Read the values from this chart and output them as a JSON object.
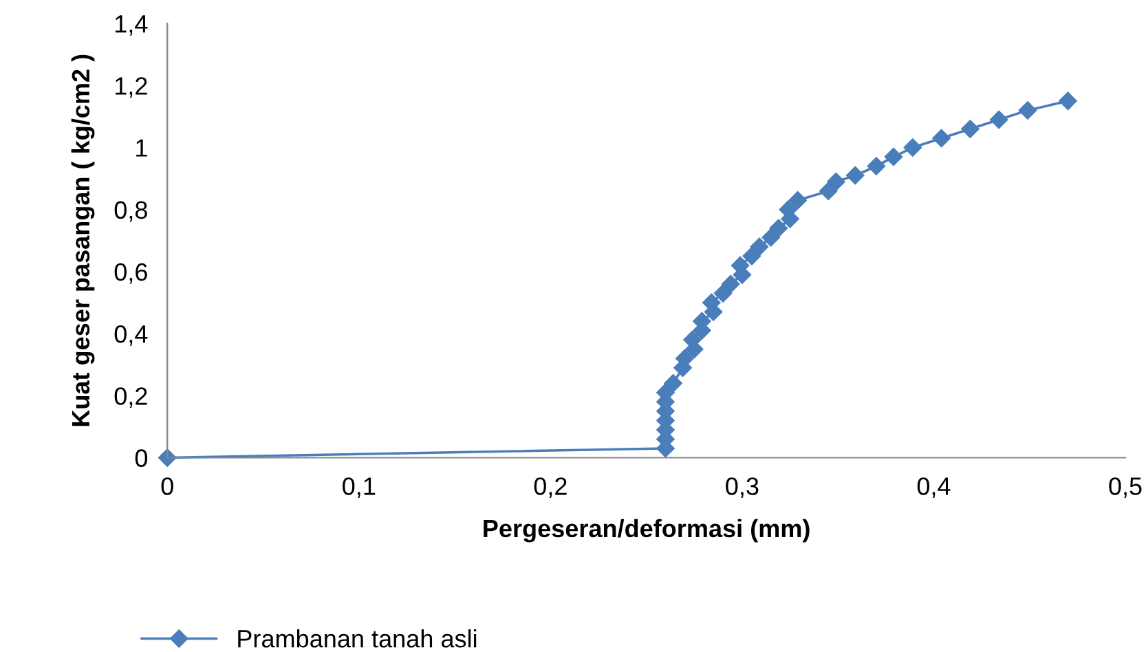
{
  "chart_data": {
    "type": "line",
    "xlabel": "Pergeseran/deformasi (mm)",
    "ylabel": "Kuat geser pasangan ( kg/cm2 )",
    "xlim": [
      0,
      0.5
    ],
    "ylim": [
      0,
      1.4
    ],
    "xticks": [
      {
        "value": 0,
        "label": "0"
      },
      {
        "value": 0.1,
        "label": "0,1"
      },
      {
        "value": 0.2,
        "label": "0,2"
      },
      {
        "value": 0.3,
        "label": "0,3"
      },
      {
        "value": 0.4,
        "label": "0,4"
      },
      {
        "value": 0.5,
        "label": "0,5"
      }
    ],
    "yticks": [
      {
        "value": 0,
        "label": "0"
      },
      {
        "value": 0.2,
        "label": "0,2"
      },
      {
        "value": 0.4,
        "label": "0,4"
      },
      {
        "value": 0.6,
        "label": "0,6"
      },
      {
        "value": 0.8,
        "label": "0,8"
      },
      {
        "value": 1,
        "label": "1"
      },
      {
        "value": 1.2,
        "label": "1,2"
      },
      {
        "value": 1.4,
        "label": "1,4"
      }
    ],
    "grid": false,
    "legend": "bottom left",
    "marker": "diamond",
    "line_style": "solid",
    "series": [
      {
        "name": "Prambanan tanah asli",
        "color": "#4a7ebb",
        "x": [
          0,
          0.26,
          0.26,
          0.26,
          0.26,
          0.26,
          0.26,
          0.26,
          0.264,
          0.269,
          0.27,
          0.275,
          0.274,
          0.279,
          0.279,
          0.285,
          0.284,
          0.29,
          0.294,
          0.3,
          0.299,
          0.305,
          0.309,
          0.315,
          0.319,
          0.325,
          0.324,
          0.329,
          0.345,
          0.349,
          0.359,
          0.37,
          0.379,
          0.389,
          0.404,
          0.419,
          0.434,
          0.449,
          0.47
        ],
        "values": [
          0,
          0.03,
          0.06,
          0.09,
          0.12,
          0.15,
          0.18,
          0.21,
          0.24,
          0.29,
          0.32,
          0.35,
          0.38,
          0.41,
          0.44,
          0.47,
          0.5,
          0.53,
          0.56,
          0.59,
          0.62,
          0.65,
          0.68,
          0.71,
          0.74,
          0.77,
          0.8,
          0.83,
          0.86,
          0.89,
          0.91,
          0.94,
          0.97,
          1.0,
          1.03,
          1.06,
          1.09,
          1.12,
          1.15
        ]
      }
    ]
  }
}
